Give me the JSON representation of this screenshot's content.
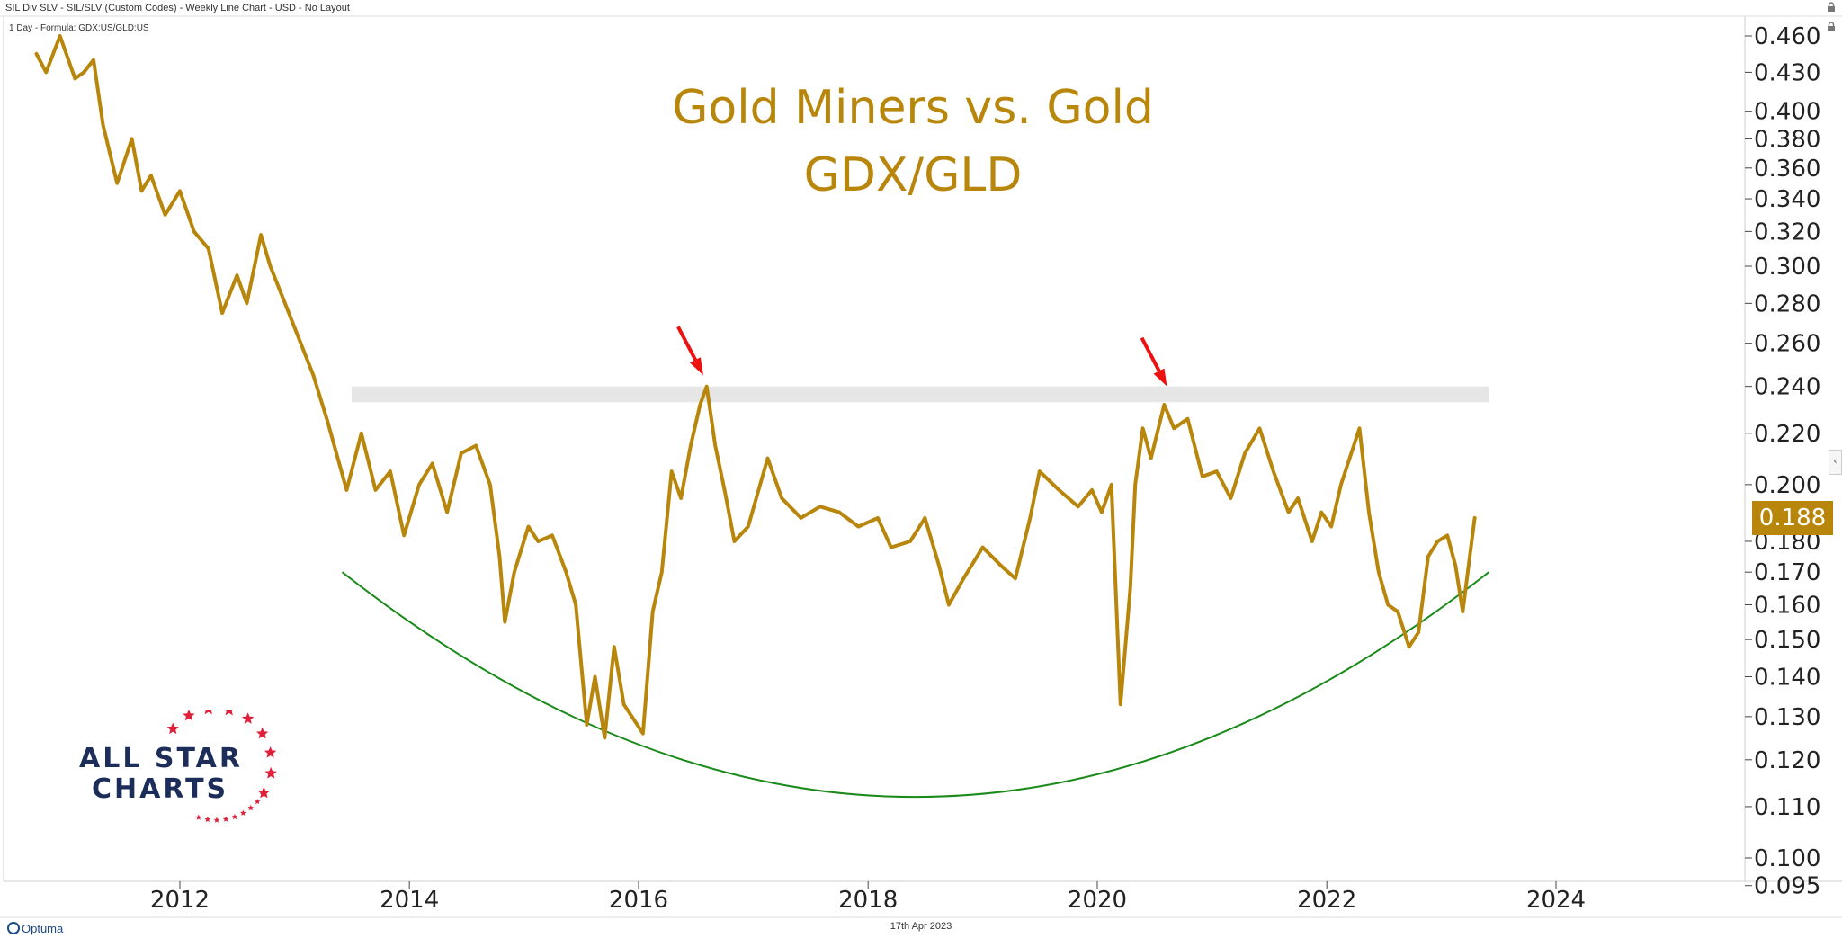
{
  "header": {
    "title": "SIL Div SLV - SIL/SLV (Custom Codes) - Weekly Line Chart - USD - No Layout",
    "formula": "1 Day - Formula: GDX:US/GLD:US"
  },
  "footer": {
    "brand": "Optuma",
    "date": "17th Apr 2023"
  },
  "logo": {
    "line1": "ALL STAR",
    "line2": "CHARTS",
    "star_color": "#e0203a",
    "text_color": "#1c2d5a"
  },
  "icons": [
    "lock-icon",
    "lock-icon",
    "collapse-arrow-icon"
  ],
  "collapse_glyph": "‹",
  "colors": {
    "series": "#b8860b",
    "arc": "#1a8a1a",
    "resistance_band": "#e6e6e6",
    "arrow": "#ee1111"
  },
  "chart_data": {
    "type": "line",
    "title": "Gold Miners vs. Gold",
    "subtitle": "GDX/GLD",
    "y_scale": "log",
    "ylim": [
      0.095,
      0.47
    ],
    "xlim": [
      "2010-10-01",
      "2025-12-31"
    ],
    "y_ticks": [
      "0.460",
      "0.430",
      "0.400",
      "0.380",
      "0.360",
      "0.340",
      "0.320",
      "0.300",
      "0.280",
      "0.260",
      "0.240",
      "0.220",
      "0.200",
      "0.188",
      "0.180",
      "0.170",
      "0.160",
      "0.150",
      "0.140",
      "0.130",
      "0.120",
      "0.110",
      "0.100",
      "0.095"
    ],
    "y_ticks_numeric": [
      0.46,
      0.43,
      0.4,
      0.38,
      0.36,
      0.34,
      0.32,
      0.3,
      0.28,
      0.26,
      0.24,
      0.22,
      0.2,
      0.18,
      0.17,
      0.16,
      0.15,
      0.14,
      0.13,
      0.12,
      0.11,
      0.1,
      0.095
    ],
    "x_ticks": [
      "2012",
      "2014",
      "2016",
      "2018",
      "2020",
      "2022",
      "2024"
    ],
    "last_value_label": "0.188",
    "grid": false,
    "series": [
      {
        "points": [
          [
            "2010-10-01",
            0.445
          ],
          [
            "2010-11-01",
            0.43
          ],
          [
            "2010-12-15",
            0.46
          ],
          [
            "2011-02-01",
            0.425
          ],
          [
            "2011-03-01",
            0.43
          ],
          [
            "2011-04-01",
            0.44
          ],
          [
            "2011-05-01",
            0.39
          ],
          [
            "2011-06-15",
            0.35
          ],
          [
            "2011-08-01",
            0.38
          ],
          [
            "2011-09-01",
            0.345
          ],
          [
            "2011-10-01",
            0.355
          ],
          [
            "2011-11-15",
            0.33
          ],
          [
            "2012-01-01",
            0.345
          ],
          [
            "2012-02-15",
            0.32
          ],
          [
            "2012-04-01",
            0.31
          ],
          [
            "2012-05-15",
            0.275
          ],
          [
            "2012-07-01",
            0.295
          ],
          [
            "2012-08-01",
            0.28
          ],
          [
            "2012-09-15",
            0.318
          ],
          [
            "2012-10-15",
            0.3
          ],
          [
            "2012-12-01",
            0.28
          ],
          [
            "2013-01-15",
            0.262
          ],
          [
            "2013-03-01",
            0.245
          ],
          [
            "2013-04-15",
            0.225
          ],
          [
            "2013-06-15",
            0.198
          ],
          [
            "2013-08-01",
            0.22
          ],
          [
            "2013-09-15",
            0.198
          ],
          [
            "2013-11-01",
            0.205
          ],
          [
            "2013-12-15",
            0.182
          ],
          [
            "2014-02-01",
            0.2
          ],
          [
            "2014-03-15",
            0.208
          ],
          [
            "2014-05-01",
            0.19
          ],
          [
            "2014-06-15",
            0.212
          ],
          [
            "2014-08-01",
            0.215
          ],
          [
            "2014-09-15",
            0.2
          ],
          [
            "2014-10-15",
            0.175
          ],
          [
            "2014-11-01",
            0.155
          ],
          [
            "2014-12-01",
            0.17
          ],
          [
            "2015-01-15",
            0.185
          ],
          [
            "2015-02-15",
            0.18
          ],
          [
            "2015-04-01",
            0.182
          ],
          [
            "2015-05-15",
            0.17
          ],
          [
            "2015-06-15",
            0.16
          ],
          [
            "2015-07-20",
            0.128
          ],
          [
            "2015-08-15",
            0.14
          ],
          [
            "2015-09-15",
            0.125
          ],
          [
            "2015-10-15",
            0.148
          ],
          [
            "2015-11-15",
            0.133
          ],
          [
            "2016-01-15",
            0.126
          ],
          [
            "2016-02-15",
            0.158
          ],
          [
            "2016-03-15",
            0.17
          ],
          [
            "2016-04-15",
            0.205
          ],
          [
            "2016-05-15",
            0.195
          ],
          [
            "2016-06-15",
            0.215
          ],
          [
            "2016-07-15",
            0.232
          ],
          [
            "2016-08-05",
            0.24
          ],
          [
            "2016-09-01",
            0.215
          ],
          [
            "2016-10-01",
            0.198
          ],
          [
            "2016-11-01",
            0.18
          ],
          [
            "2016-12-15",
            0.185
          ],
          [
            "2017-02-15",
            0.21
          ],
          [
            "2017-04-01",
            0.195
          ],
          [
            "2017-06-01",
            0.188
          ],
          [
            "2017-08-01",
            0.192
          ],
          [
            "2017-10-01",
            0.19
          ],
          [
            "2017-12-01",
            0.185
          ],
          [
            "2018-02-01",
            0.188
          ],
          [
            "2018-03-15",
            0.178
          ],
          [
            "2018-05-15",
            0.18
          ],
          [
            "2018-07-01",
            0.188
          ],
          [
            "2018-08-15",
            0.172
          ],
          [
            "2018-09-15",
            0.16
          ],
          [
            "2018-11-01",
            0.168
          ],
          [
            "2019-01-01",
            0.178
          ],
          [
            "2019-03-01",
            0.172
          ],
          [
            "2019-04-15",
            0.168
          ],
          [
            "2019-06-01",
            0.188
          ],
          [
            "2019-07-01",
            0.205
          ],
          [
            "2019-09-01",
            0.198
          ],
          [
            "2019-11-01",
            0.192
          ],
          [
            "2019-12-15",
            0.198
          ],
          [
            "2020-01-15",
            0.19
          ],
          [
            "2020-02-15",
            0.2
          ],
          [
            "2020-03-15",
            0.133
          ],
          [
            "2020-04-15",
            0.165
          ],
          [
            "2020-05-01",
            0.2
          ],
          [
            "2020-05-25",
            0.222
          ],
          [
            "2020-06-20",
            0.21
          ],
          [
            "2020-08-01",
            0.232
          ],
          [
            "2020-09-01",
            0.222
          ],
          [
            "2020-10-15",
            0.226
          ],
          [
            "2020-12-01",
            0.203
          ],
          [
            "2021-01-15",
            0.205
          ],
          [
            "2021-03-01",
            0.195
          ],
          [
            "2021-04-15",
            0.212
          ],
          [
            "2021-06-01",
            0.222
          ],
          [
            "2021-07-15",
            0.205
          ],
          [
            "2021-09-01",
            0.19
          ],
          [
            "2021-10-01",
            0.195
          ],
          [
            "2021-11-15",
            0.18
          ],
          [
            "2021-12-15",
            0.19
          ],
          [
            "2022-01-15",
            0.185
          ],
          [
            "2022-02-15",
            0.2
          ],
          [
            "2022-04-15",
            0.222
          ],
          [
            "2022-05-15",
            0.19
          ],
          [
            "2022-06-15",
            0.17
          ],
          [
            "2022-07-15",
            0.16
          ],
          [
            "2022-08-15",
            0.158
          ],
          [
            "2022-09-20",
            0.148
          ],
          [
            "2022-10-20",
            0.152
          ],
          [
            "2022-11-20",
            0.175
          ],
          [
            "2022-12-20",
            0.18
          ],
          [
            "2023-01-20",
            0.182
          ],
          [
            "2023-02-15",
            0.172
          ],
          [
            "2023-03-10",
            0.158
          ],
          [
            "2023-04-17",
            0.188
          ]
        ]
      }
    ],
    "annotations": {
      "resistance_band": {
        "y_low": 0.233,
        "y_high": 0.24,
        "x_start": "2013-07-01",
        "x_end": "2023-06-01"
      },
      "arrows": [
        {
          "x": "2016-07-25",
          "y": 0.245
        },
        {
          "x": "2020-08-10",
          "y": 0.24
        }
      ],
      "arc": {
        "x_start": "2013-06-01",
        "x_end": "2023-06-01",
        "y_ends": 0.17,
        "y_min": 0.112
      }
    }
  }
}
